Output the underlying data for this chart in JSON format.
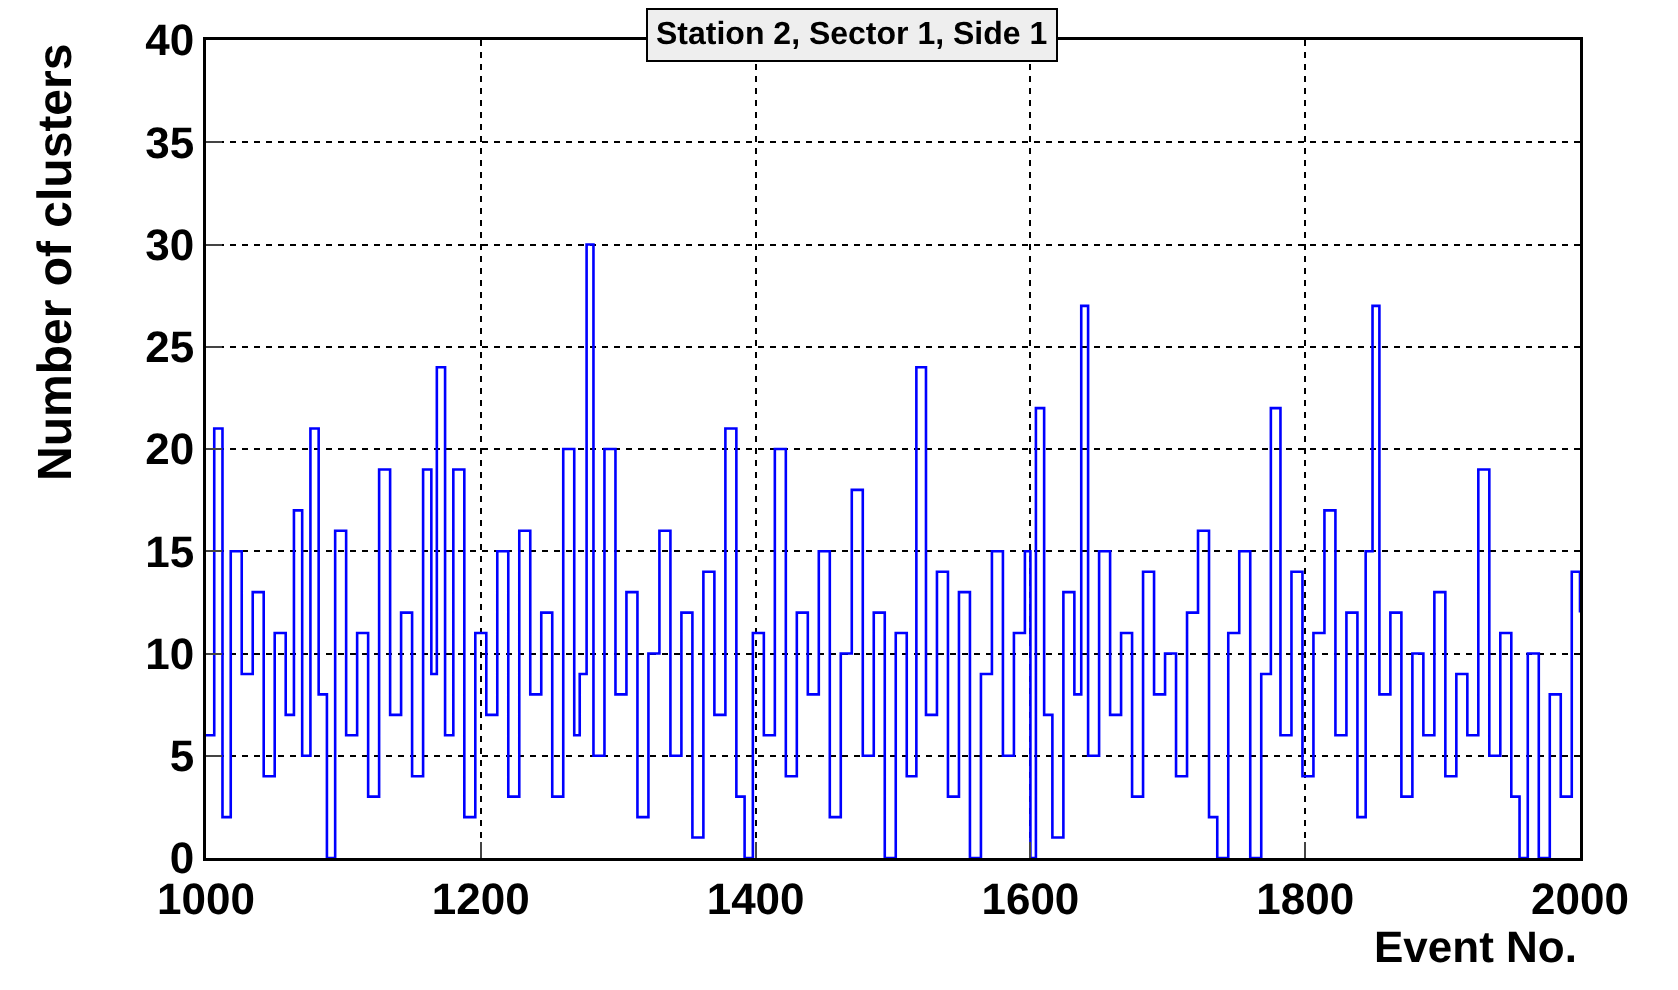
{
  "chart_data": {
    "type": "step",
    "title": "Station 2, Sector 1, Side 1",
    "xlabel": "Event No.",
    "ylabel": "Number of clusters",
    "x": [
      1000,
      1006,
      1012,
      1018,
      1026,
      1034,
      1042,
      1050,
      1058,
      1064,
      1070,
      1076,
      1082,
      1088,
      1094,
      1102,
      1110,
      1118,
      1126,
      1134,
      1142,
      1150,
      1158,
      1164,
      1168,
      1174,
      1180,
      1188,
      1196,
      1204,
      1212,
      1220,
      1228,
      1236,
      1244,
      1252,
      1260,
      1268,
      1272,
      1277,
      1282,
      1290,
      1298,
      1306,
      1314,
      1322,
      1330,
      1338,
      1346,
      1354,
      1362,
      1370,
      1378,
      1386,
      1392,
      1398,
      1406,
      1414,
      1422,
      1430,
      1438,
      1446,
      1454,
      1462,
      1470,
      1478,
      1486,
      1494,
      1502,
      1510,
      1517,
      1524,
      1532,
      1540,
      1548,
      1556,
      1564,
      1572,
      1580,
      1588,
      1596,
      1600,
      1604,
      1610,
      1616,
      1624,
      1632,
      1637,
      1642,
      1650,
      1658,
      1666,
      1674,
      1682,
      1690,
      1698,
      1706,
      1714,
      1722,
      1730,
      1736,
      1744,
      1752,
      1760,
      1768,
      1775,
      1782,
      1790,
      1798,
      1806,
      1814,
      1822,
      1830,
      1838,
      1844,
      1849,
      1854,
      1862,
      1870,
      1878,
      1886,
      1894,
      1902,
      1910,
      1918,
      1926,
      1934,
      1942,
      1950,
      1956,
      1962,
      1970,
      1978,
      1986,
      1994,
      2000
    ],
    "values": [
      6,
      21,
      2,
      15,
      9,
      13,
      4,
      11,
      7,
      17,
      5,
      21,
      8,
      0,
      16,
      6,
      11,
      3,
      19,
      7,
      12,
      4,
      19,
      9,
      24,
      6,
      19,
      2,
      11,
      7,
      15,
      3,
      16,
      8,
      12,
      3,
      20,
      6,
      9,
      30,
      5,
      20,
      8,
      13,
      2,
      10,
      16,
      5,
      12,
      1,
      14,
      7,
      21,
      3,
      0,
      11,
      6,
      20,
      4,
      12,
      8,
      15,
      2,
      10,
      18,
      5,
      12,
      0,
      11,
      4,
      24,
      7,
      14,
      3,
      13,
      0,
      9,
      15,
      5,
      11,
      15,
      0,
      22,
      7,
      1,
      13,
      8,
      27,
      5,
      15,
      7,
      11,
      3,
      14,
      8,
      10,
      4,
      12,
      16,
      2,
      0,
      11,
      15,
      0,
      9,
      22,
      6,
      14,
      4,
      11,
      17,
      6,
      12,
      2,
      15,
      27,
      8,
      12,
      3,
      10,
      6,
      13,
      4,
      9,
      6,
      19,
      5,
      11,
      3,
      0,
      10,
      0,
      8,
      3,
      14,
      12
    ],
    "color": "#0000ff",
    "xlim": [
      1000,
      2000
    ],
    "xticks": [
      1000,
      1200,
      1400,
      1600,
      1800,
      2000
    ],
    "ylim": [
      0,
      40
    ],
    "yticks": [
      0,
      5,
      10,
      15,
      20,
      25,
      30,
      35,
      40
    ],
    "grid": true,
    "line_style": "solid"
  }
}
